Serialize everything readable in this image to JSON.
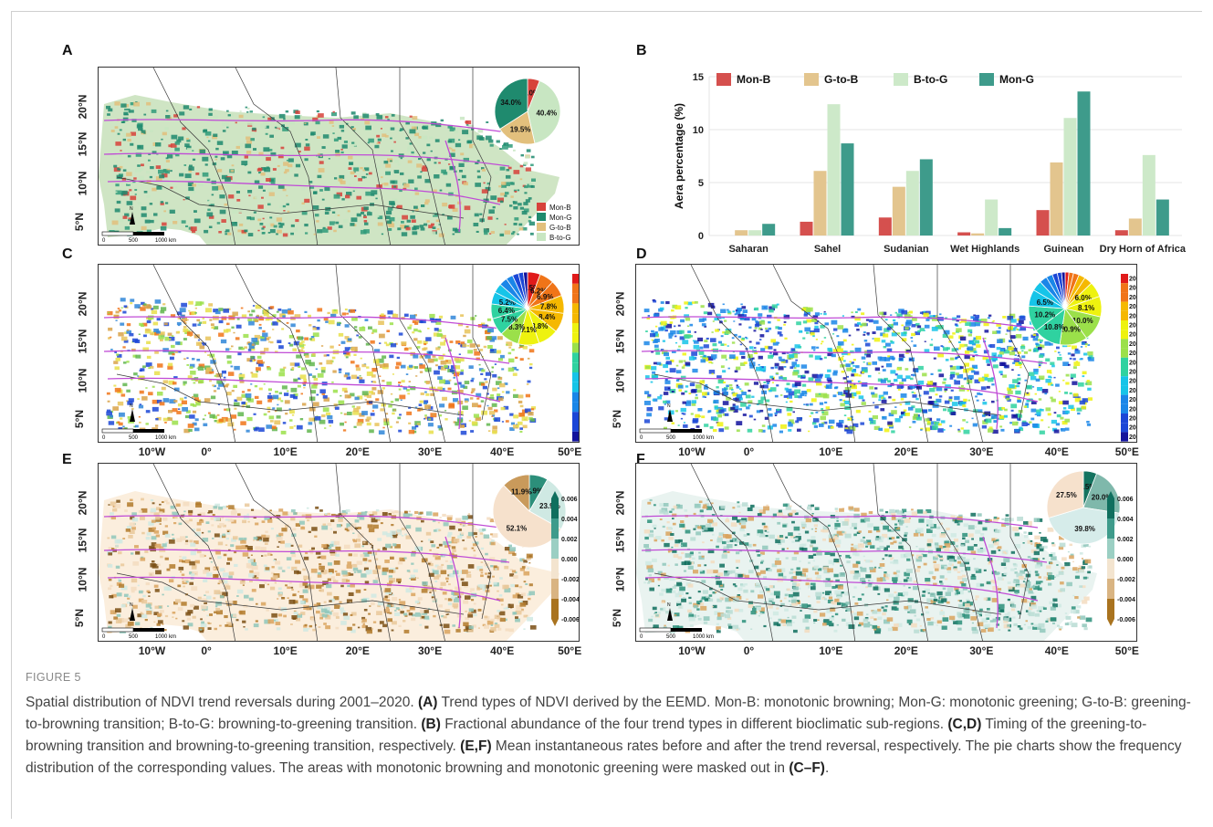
{
  "figure": {
    "number": "FIGURE 5",
    "caption_segments": [
      {
        "t": "Spatial distribution of NDVI trend reversals during 2001–2020. ",
        "b": false
      },
      {
        "t": "(A)",
        "b": true
      },
      {
        "t": " Trend types of NDVI derived by the EEMD. Mon-B: monotonic browning; Mon-G: monotonic greening; G-to-B: greening-to-browning transition; B-to-G: browning-to-greening transition. ",
        "b": false
      },
      {
        "t": "(B)",
        "b": true
      },
      {
        "t": " Fractional abundance of the four trend types in different bioclimatic sub-regions. ",
        "b": false
      },
      {
        "t": "(C,D)",
        "b": true
      },
      {
        "t": " Timing of the greening-to-browning transition and browning-to-greening transition, respectively. ",
        "b": false
      },
      {
        "t": "(E,F)",
        "b": true
      },
      {
        "t": " Mean instantaneous rates before and after the trend reversal, respectively. The pie charts show the frequency distribution of the corresponding values. The areas with monotonic browning and monotonic greening were masked out in ",
        "b": false
      },
      {
        "t": "(C–F)",
        "b": true
      },
      {
        "t": ".",
        "b": false
      }
    ]
  },
  "panels": {
    "A": {
      "label": "A",
      "legend": [
        {
          "name": "Mon-B",
          "color": "#d7423b"
        },
        {
          "name": "Mon-G",
          "color": "#1f8a6e"
        },
        {
          "name": "G-to-B",
          "color": "#e2c07d"
        },
        {
          "name": "B-to-G",
          "color": "#c8e6c2"
        }
      ],
      "pie": [
        {
          "label": "6.0%",
          "value": 6.0,
          "color": "#d7423b"
        },
        {
          "label": "40.4%",
          "value": 40.4,
          "color": "#c8e6c2"
        },
        {
          "label": "19.5%",
          "value": 19.5,
          "color": "#e2c07d"
        },
        {
          "label": "34.0%",
          "value": 34.0,
          "color": "#1f8a6e"
        }
      ]
    },
    "C": {
      "label": "C",
      "legend_years": [
        "2019",
        "2018",
        "2017",
        "2016",
        "2015",
        "2014",
        "2013",
        "2012",
        "2011",
        "2010",
        "2009",
        "2008",
        "2007",
        "2006",
        "2005",
        "2004",
        "2003"
      ],
      "pie_labels": [
        "5.5%",
        "6.2%",
        "6.9%",
        "7.8%",
        "8.4%",
        "8.8%",
        "9.1%",
        "8.3%",
        "7.5%",
        "6.4%",
        "5.2%"
      ]
    },
    "D": {
      "label": "D",
      "legend_years": [
        "2019",
        "2018",
        "2017",
        "2016",
        "2015",
        "2014",
        "2013",
        "2012",
        "2011",
        "2010",
        "2009",
        "2008",
        "2007",
        "2006",
        "2005",
        "2004",
        "2003",
        "2002"
      ],
      "pie_labels": [
        "6.0%",
        "8.1%",
        "10.0%",
        "10.9%",
        "10.8%",
        "10.2%",
        "6.5%"
      ]
    },
    "E": {
      "label": "E",
      "pie": [
        {
          "label": "7.9%",
          "value": 7.9,
          "color": "#2c8f7a"
        },
        {
          "label": "23.9%",
          "value": 23.9,
          "color": "#cfe9e3"
        },
        {
          "label": "52.1%",
          "value": 52.1,
          "color": "#f6e1cc"
        },
        {
          "label": "11.9%",
          "value": 11.9,
          "color": "#c99a5b"
        }
      ],
      "colorbar": [
        "0.006",
        "0.004",
        "0.002",
        "0.000",
        "-0.002",
        "-0.004",
        "-0.006"
      ]
    },
    "F": {
      "label": "F",
      "pie": [
        {
          "label": "5.5%",
          "value": 5.5,
          "color": "#14735f"
        },
        {
          "label": "20.0%",
          "value": 20.0,
          "color": "#7fb8ab"
        },
        {
          "label": "39.8%",
          "value": 39.8,
          "color": "#d6ecea"
        },
        {
          "label": "27.5%",
          "value": 27.5,
          "color": "#f6e1cc"
        }
      ],
      "colorbar": [
        "0.006",
        "0.004",
        "0.002",
        "0.000",
        "-0.002",
        "-0.004",
        "-0.006"
      ]
    }
  },
  "map_axes": {
    "x_ticks": [
      "10°W",
      "0°",
      "10°E",
      "20°E",
      "30°E",
      "40°E",
      "50°E"
    ],
    "y_ticks": [
      "20°N",
      "15°N",
      "10°N",
      "5°N"
    ],
    "scalebar": [
      "0",
      "500",
      "1000 km"
    ],
    "north": "N"
  },
  "chart_data": {
    "type": "bar",
    "panel": "B",
    "ylabel": "Aera percentage (%)",
    "xlabel": "",
    "ylim": [
      0,
      15
    ],
    "yticks": [
      0,
      5,
      10,
      15
    ],
    "legend_position": "top-left",
    "categories": [
      "Saharan",
      "Sahel",
      "Sudanian",
      "Wet Highlands",
      "Guinean",
      "Dry Horn of Africa"
    ],
    "series": [
      {
        "name": "Mon-B",
        "color": "#d5504e",
        "values": [
          0.0,
          1.3,
          1.7,
          0.3,
          2.4,
          0.5
        ]
      },
      {
        "name": "G-to-B",
        "color": "#e3c58e",
        "values": [
          0.5,
          6.1,
          4.6,
          0.2,
          6.9,
          1.6
        ]
      },
      {
        "name": "B-to-G",
        "color": "#cde9c9",
        "values": [
          0.5,
          12.4,
          6.1,
          3.4,
          11.1,
          7.6
        ]
      },
      {
        "name": "Mon-G",
        "color": "#3e9b8b",
        "values": [
          1.1,
          8.7,
          7.2,
          0.7,
          13.6,
          3.4
        ]
      }
    ]
  }
}
